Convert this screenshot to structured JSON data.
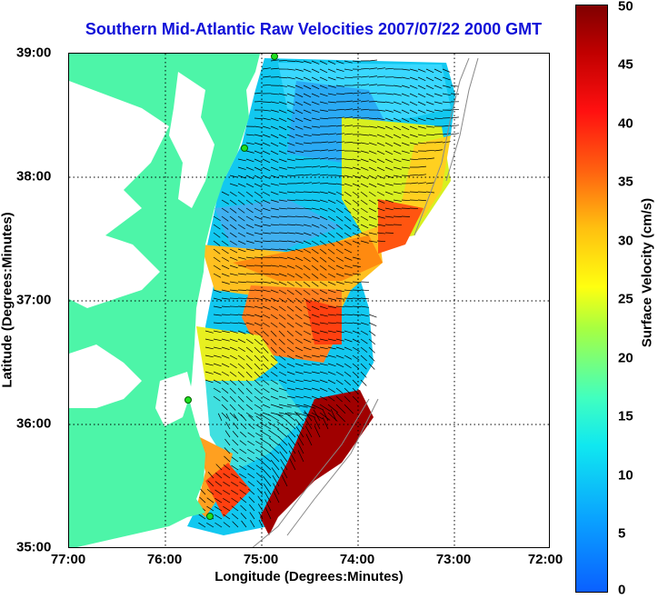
{
  "title": "Southern Mid-Atlantic Raw Velocities 2007/07/22 2000 GMT",
  "xlabel": "Longitude (Degrees:Minutes)",
  "ylabel": "Latitude (Degrees:Minutes)",
  "x_ticks": [
    "77:00",
    "76:00",
    "75:00",
    "74:00",
    "73:00",
    "72:00"
  ],
  "y_ticks": [
    "39:00",
    "38:00",
    "37:00",
    "36:00",
    "35:00"
  ],
  "colorbar": {
    "label": "Surface Velocity (cm/s)",
    "ticks": [
      "50",
      "45",
      "40",
      "35",
      "30",
      "25",
      "20",
      "15",
      "10",
      "5",
      "0"
    ],
    "range": [
      0,
      50
    ]
  },
  "colors": {
    "land": "#4df5a8",
    "title": "#1010d8",
    "station": "#20e020"
  },
  "map_extent": {
    "lon": [
      -77,
      -72
    ],
    "lat": [
      35,
      39
    ]
  }
}
